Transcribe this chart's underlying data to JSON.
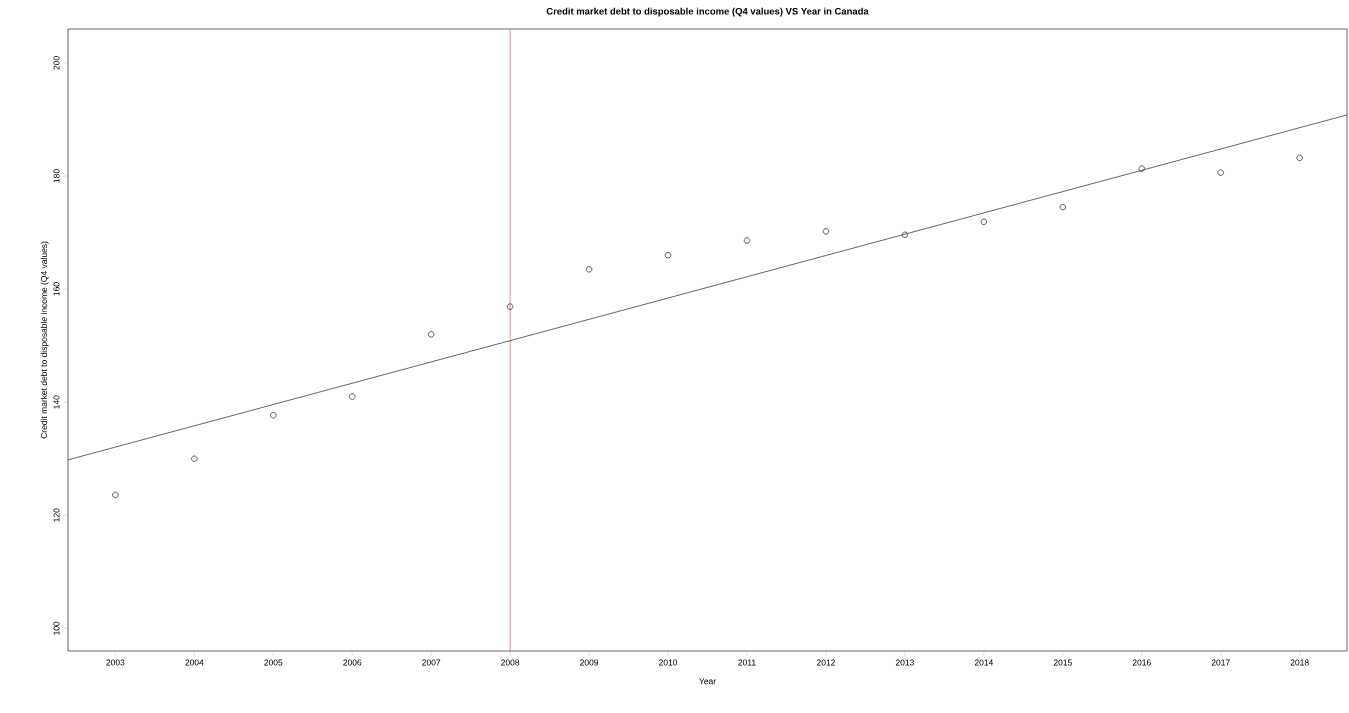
{
  "chart_data": {
    "type": "scatter",
    "title": "Credit market debt to disposable income (Q4 values) VS Year in Canada",
    "xlabel": "Year",
    "ylabel": "Credit market debt to disposable income (Q4 values)",
    "xlim": [
      2002.4,
      2018.6
    ],
    "ylim": [
      96,
      206
    ],
    "xticks": [
      2003,
      2004,
      2005,
      2006,
      2007,
      2008,
      2009,
      2010,
      2011,
      2012,
      2013,
      2014,
      2015,
      2016,
      2017,
      2018
    ],
    "yticks": [
      100,
      120,
      140,
      160,
      180,
      200
    ],
    "series": [
      {
        "color": "#333333",
        "marker": "circle",
        "x": [
          2003,
          2004,
          2005,
          2006,
          2007,
          2008,
          2009,
          2010,
          2011,
          2012,
          2013,
          2014,
          2015,
          2016,
          2017,
          2018
        ],
        "values": [
          123.6,
          130.0,
          137.7,
          141.0,
          152.0,
          156.9,
          163.5,
          166.0,
          168.6,
          170.2,
          169.6,
          171.9,
          174.5,
          181.3,
          180.6,
          183.2
        ]
      },
      {
        "type": "line",
        "color": "#222222",
        "x": [
          2002.4,
          2018.6
        ],
        "values": [
          129.8,
          190.8
        ]
      }
    ],
    "ref_lines": [
      {
        "axis": "x",
        "value": 2008,
        "color": "#e8706e"
      }
    ]
  }
}
